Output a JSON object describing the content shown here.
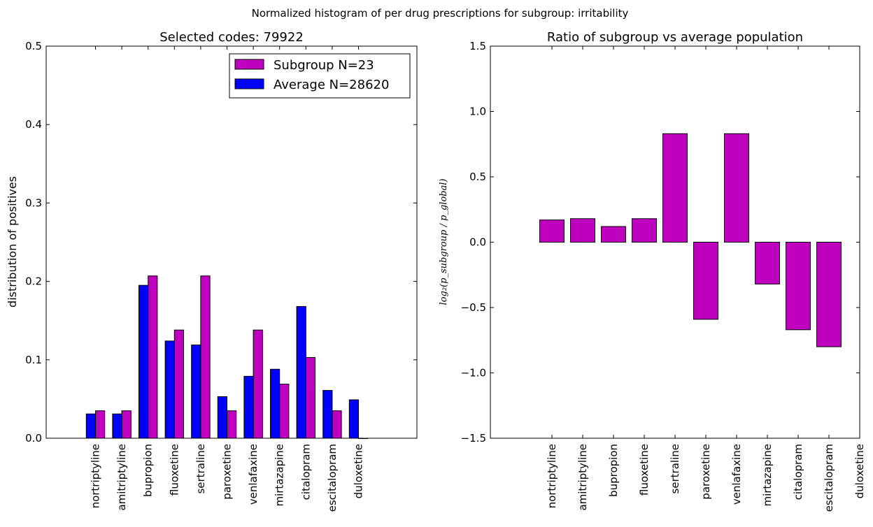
{
  "figure": {
    "suptitle": "Normalized histogram of per drug prescriptions for subgroup: irritability"
  },
  "colors": {
    "subgroup": "#bf00bf",
    "average": "#0000ff",
    "edge": "#000000"
  },
  "chart_data": [
    {
      "type": "bar",
      "title": "Selected codes: 79922",
      "xlabel": "",
      "ylabel": "distribution of positives",
      "ylim": [
        0,
        0.5
      ],
      "yticks": [
        "0.0",
        "0.1",
        "0.2",
        "0.3",
        "0.4",
        "0.5"
      ],
      "grid": false,
      "legend_position": "top-right",
      "categories": [
        "nortriptyline",
        "amitriptyline",
        "bupropion",
        "fluoxetine",
        "sertraline",
        "paroxetine",
        "venlafaxine",
        "mirtazapine",
        "citalopram",
        "escitalopram",
        "duloxetine"
      ],
      "series": [
        {
          "name": "Average N=28620",
          "color": "#0000ff",
          "values": [
            0.031,
            0.031,
            0.195,
            0.124,
            0.119,
            0.053,
            0.079,
            0.088,
            0.168,
            0.061,
            0.049
          ]
        },
        {
          "name": "Subgroup N=23",
          "color": "#bf00bf",
          "values": [
            0.035,
            0.035,
            0.207,
            0.138,
            0.207,
            0.035,
            0.138,
            0.069,
            0.103,
            0.035,
            0.0
          ]
        }
      ],
      "legend": [
        "Subgroup N=23",
        "Average N=28620"
      ]
    },
    {
      "type": "bar",
      "title": "Ratio of subgroup vs average population",
      "xlabel": "",
      "ylabel": "log₂(p_subgroup / p_global)",
      "ylim": [
        -1.5,
        1.5
      ],
      "yticks": [
        "−1.5",
        "−1.0",
        "−0.5",
        "0.0",
        "0.5",
        "1.0",
        "1.5"
      ],
      "grid": false,
      "categories": [
        "nortriptyline",
        "amitriptyline",
        "bupropion",
        "fluoxetine",
        "sertraline",
        "paroxetine",
        "venlafaxine",
        "mirtazapine",
        "citalopram",
        "escitalopram",
        "duloxetine"
      ],
      "series": [
        {
          "color": "#bf00bf",
          "values": [
            0.17,
            0.18,
            0.12,
            0.18,
            0.83,
            -0.59,
            0.83,
            -0.32,
            -0.67,
            -0.8,
            null
          ]
        }
      ]
    }
  ]
}
